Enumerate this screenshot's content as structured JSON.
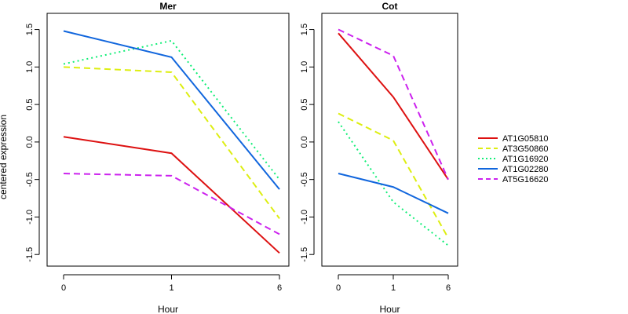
{
  "chart_data": {
    "type": "line",
    "ylabel": "centered expression",
    "legend_position": "right",
    "x_ticks": [
      "0",
      "1",
      "6"
    ],
    "panels": [
      {
        "title": "Mer",
        "xlabel": "Hour",
        "x": [
          0,
          1,
          6
        ],
        "ylim": [
          -1.55,
          1.6
        ],
        "yticks": [
          "-1.5",
          "-1.0",
          "-0.5",
          "0.0",
          "0.5",
          "1.0",
          "1.5"
        ],
        "series": [
          {
            "name": "AT1G05810",
            "values": [
              0.07,
              -0.15,
              -1.48
            ]
          },
          {
            "name": "AT3G50860",
            "values": [
              1.0,
              0.93,
              -1.02
            ]
          },
          {
            "name": "AT1G16920",
            "values": [
              1.04,
              1.35,
              -0.5
            ]
          },
          {
            "name": "AT1G02280",
            "values": [
              1.48,
              1.13,
              -0.63
            ]
          },
          {
            "name": "AT5G16620",
            "values": [
              -0.42,
              -0.45,
              -1.23
            ]
          }
        ]
      },
      {
        "title": "Cot",
        "xlabel": "Hour",
        "x": [
          0,
          1,
          6
        ],
        "ylim": [
          -1.55,
          1.6
        ],
        "yticks": [
          "-1.5",
          "-1.0",
          "-0.5",
          "0.0",
          "0.5",
          "1.0",
          "1.5"
        ],
        "series": [
          {
            "name": "AT1G05810",
            "values": [
              1.45,
              0.6,
              -0.5
            ]
          },
          {
            "name": "AT3G50860",
            "values": [
              0.38,
              0.02,
              -1.28
            ]
          },
          {
            "name": "AT1G16920",
            "values": [
              0.27,
              -0.8,
              -1.38
            ]
          },
          {
            "name": "AT1G02280",
            "values": [
              -0.42,
              -0.6,
              -0.95
            ]
          },
          {
            "name": "AT5G16620",
            "values": [
              1.5,
              1.15,
              -0.5
            ]
          }
        ]
      }
    ],
    "legend": [
      {
        "name": "AT1G05810",
        "color": "#dd1111",
        "dash": "solid"
      },
      {
        "name": "AT3G50860",
        "color": "#ddee11",
        "dash": "dashed"
      },
      {
        "name": "AT1G16920",
        "color": "#11ee77",
        "dash": "dotted"
      },
      {
        "name": "AT1G02280",
        "color": "#1166dd",
        "dash": "solid"
      },
      {
        "name": "AT5G16620",
        "color": "#cc22ee",
        "dash": "dashed"
      }
    ]
  }
}
